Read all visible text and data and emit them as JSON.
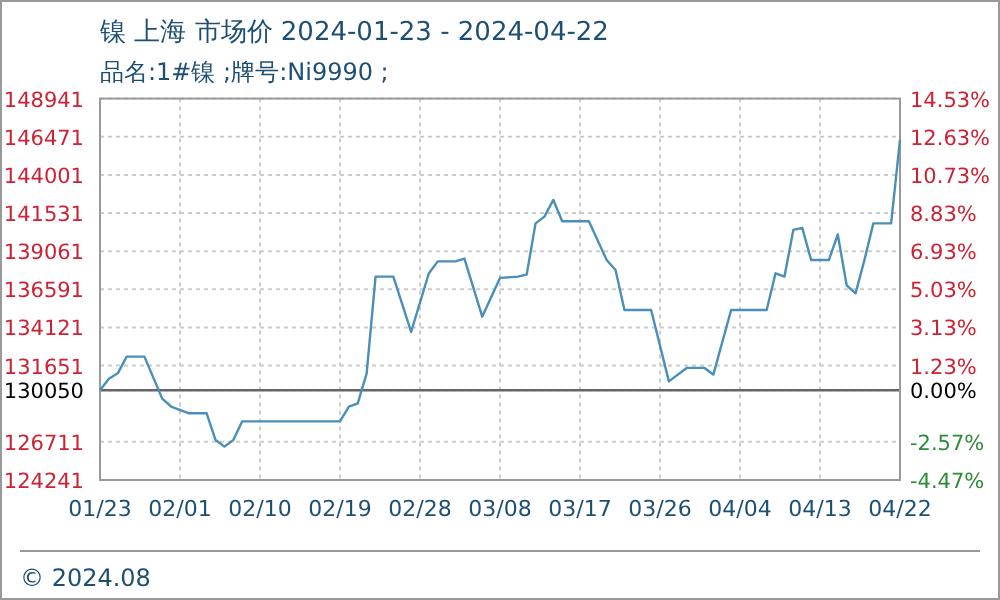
{
  "chart_data": {
    "type": "line",
    "title": "镍 上海 市场价 2024-01-23 - 2024-04-22",
    "subtitle": "品名:1#镍 ;牌号:Ni9990 ;",
    "x": [
      "2024-01-23",
      "2024-01-24",
      "2024-01-25",
      "2024-01-26",
      "2024-01-28",
      "2024-01-30",
      "2024-01-31",
      "2024-02-02",
      "2024-02-04",
      "2024-02-05",
      "2024-02-06",
      "2024-02-07",
      "2024-02-08",
      "2024-02-19",
      "2024-02-20",
      "2024-02-21",
      "2024-02-22",
      "2024-02-23",
      "2024-02-25",
      "2024-02-27",
      "2024-02-29",
      "2024-03-01",
      "2024-03-03",
      "2024-03-04",
      "2024-03-06",
      "2024-03-08",
      "2024-03-10",
      "2024-03-11",
      "2024-03-12",
      "2024-03-13",
      "2024-03-14",
      "2024-03-15",
      "2024-03-18",
      "2024-03-20",
      "2024-03-21",
      "2024-03-22",
      "2024-03-25",
      "2024-03-27",
      "2024-03-29",
      "2024-03-31",
      "2024-04-01",
      "2024-04-03",
      "2024-04-07",
      "2024-04-08",
      "2024-04-09",
      "2024-04-10",
      "2024-04-11",
      "2024-04-12",
      "2024-04-14",
      "2024-04-15",
      "2024-04-16",
      "2024-04-17",
      "2024-04-18",
      "2024-04-19",
      "2024-04-21",
      "2024-04-22"
    ],
    "series": [
      {
        "color": "#4a8fb8",
        "values": [
          130050,
          130800,
          131150,
          132230,
          132230,
          129510,
          129000,
          128560,
          128560,
          126830,
          126400,
          126830,
          128040,
          128040,
          128990,
          129200,
          131150,
          137410,
          137410,
          133830,
          137630,
          138400,
          138400,
          138580,
          134820,
          137330,
          137410,
          137540,
          140860,
          141300,
          142380,
          141000,
          141000,
          138490,
          137840,
          135250,
          135250,
          130630,
          131500,
          131500,
          131070,
          135250,
          135250,
          137630,
          137410,
          140440,
          140570,
          138490,
          138490,
          140140,
          136850,
          136330,
          138490,
          140860,
          140860,
          146270
        ]
      }
    ],
    "xlim": [
      "2024-01-23",
      "2024-04-22"
    ],
    "xticks": [
      {
        "value": "2024-01-23",
        "label": "01/23"
      },
      {
        "value": "2024-02-01",
        "label": "02/01"
      },
      {
        "value": "2024-02-10",
        "label": "02/10"
      },
      {
        "value": "2024-02-19",
        "label": "02/19"
      },
      {
        "value": "2024-02-28",
        "label": "02/28"
      },
      {
        "value": "2024-03-08",
        "label": "03/08"
      },
      {
        "value": "2024-03-17",
        "label": "03/17"
      },
      {
        "value": "2024-03-26",
        "label": "03/26"
      },
      {
        "value": "2024-04-04",
        "label": "04/04"
      },
      {
        "value": "2024-04-13",
        "label": "04/13"
      },
      {
        "value": "2024-04-22",
        "label": "04/22"
      }
    ],
    "ylim": [
      124241,
      148941
    ],
    "yticks": [
      148941,
      146471,
      144001,
      141531,
      139061,
      136591,
      134121,
      131651,
      130050,
      126711,
      124241
    ],
    "y2lim": [
      -4.47,
      14.53
    ],
    "y2ticks": [
      {
        "value": 14.53,
        "label": "14.53%"
      },
      {
        "value": 12.63,
        "label": "12.63%"
      },
      {
        "value": 10.73,
        "label": "10.73%"
      },
      {
        "value": 8.83,
        "label": "8.83%"
      },
      {
        "value": 6.93,
        "label": "6.93%"
      },
      {
        "value": 5.03,
        "label": "5.03%"
      },
      {
        "value": 3.13,
        "label": "3.13%"
      },
      {
        "value": 1.23,
        "label": "1.23%"
      },
      {
        "value": 0,
        "label": "0.00%"
      },
      {
        "value": -2.57,
        "label": "-2.57%"
      },
      {
        "value": -4.47,
        "label": "-4.47%"
      }
    ],
    "ref_lines": [
      {
        "axis": "y",
        "value": 130050,
        "color": "#666666"
      }
    ],
    "grid": true,
    "annotations": [
      "© 2024.08"
    ]
  }
}
